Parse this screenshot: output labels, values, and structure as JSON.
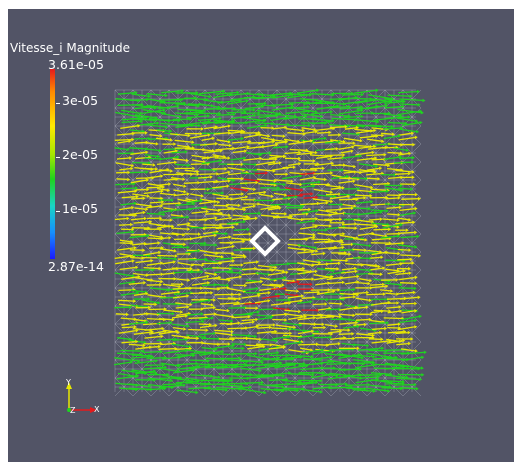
{
  "legend": {
    "title": "Vitesse_i Magnitude",
    "max_label": "3.61e-05",
    "min_label": "2.87e-14",
    "ticks": [
      "3e-05",
      "2e-05",
      "1e-05"
    ]
  },
  "axes": {
    "x_label": "X",
    "y_label": "Y",
    "z_label": "Z"
  },
  "colors": {
    "background": "#525466",
    "mesh": "#d8dce4",
    "arrow_low": "#1fd41f",
    "arrow_mid": "#e8e800",
    "arrow_high": "#e41a1c",
    "axis_x": "#e41a1c",
    "axis_y": "#e8e800",
    "axis_z": "#1fd41f"
  },
  "icons": [
    "orientation-axes-icon",
    "square-obstacle-icon"
  ]
}
